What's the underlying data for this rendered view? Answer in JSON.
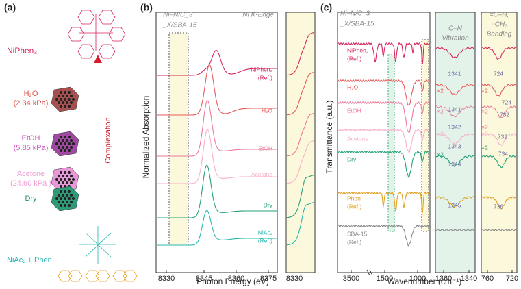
{
  "panel_a": {
    "label": "(a)",
    "top": "NiPhen₃",
    "conditions": [
      {
        "name": "H₂O",
        "pressure": "(2.34 kPa)"
      },
      {
        "name": "EtOH",
        "pressure": "(5.85 kPa)"
      },
      {
        "name": "Acetone",
        "pressure": "(24.60 kPa )"
      },
      {
        "name": "Dry"
      }
    ],
    "arrow": "Complexation",
    "bottom": "NiAc₂ + Phen"
  },
  "panel_b": {
    "label": "(b)",
    "annotation": [
      "Ni–N/C_3",
      "_X/SBA-15"
    ],
    "edge": "Ni K-Edge",
    "ylabel": "Normalized Absorption",
    "xlabel": "Photon Energy (eV)",
    "xticks": [
      "8330",
      "8345",
      "8360",
      "8375"
    ],
    "inset_xticks": [
      "8330"
    ],
    "series": [
      [
        "NiPhen₃",
        "(Ref.)"
      ],
      [
        "H₂O"
      ],
      [
        "EtOH"
      ],
      [
        "Acetone"
      ],
      [
        "Dry"
      ],
      [
        "NiAc₂",
        "(Ref.)"
      ]
    ]
  },
  "panel_c": {
    "label": "(c)",
    "annotation": [
      "Ni–N/C_3",
      "_X/SBA-15"
    ],
    "ylabel": "Transmittance (a.u.)",
    "xlabel": "Wavenumber (cm⁻¹)",
    "xticks": [
      "3500",
      "1500",
      "1000"
    ],
    "inset1_xticks": [
      "1360",
      "1340"
    ],
    "inset2_xticks": [
      "760",
      "720"
    ],
    "inset1_title": [
      "C–N",
      "Vibration"
    ],
    "inset2_title": [
      "=C–H,",
      "=CH₂",
      "Bending"
    ],
    "series": [
      [
        "NiPhen₃",
        "(Ref.)"
      ],
      [
        "H₂O"
      ],
      [
        "EtOH"
      ],
      [
        "Acetone"
      ],
      [
        "Dry"
      ],
      [
        "Phen",
        "(Ref.)"
      ],
      [
        "SBA-15",
        "(Ref.)"
      ]
    ],
    "inset1_peaks": [
      "1341",
      "1341",
      "1342",
      "1343",
      "1344",
      "1345"
    ],
    "inset2_peaks": [
      "724",
      "724",
      "732",
      "732",
      "734",
      "736"
    ],
    "scale_labels": [
      "×2",
      "×2",
      "×2",
      "×2",
      "×2",
      "×2",
      "×2",
      "×2",
      "×2"
    ]
  }
}
